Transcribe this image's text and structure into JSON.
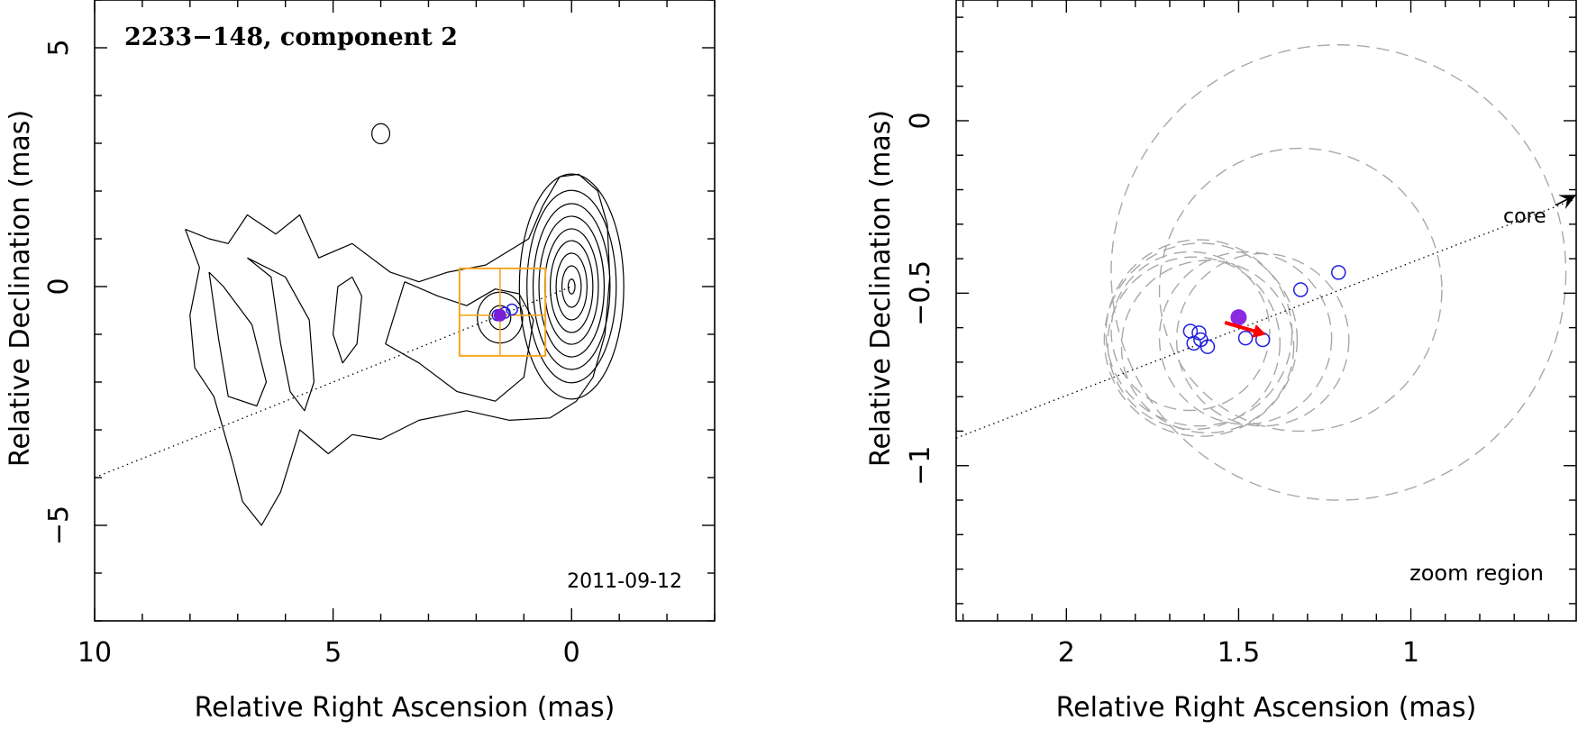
{
  "chart_data": [
    {
      "type": "contour",
      "title": "2233−148, component 2",
      "annotation": "2011-09-12",
      "xlabel": "Relative Right Ascension (mas)",
      "ylabel": "Relative Declination (mas)",
      "xlim": [
        10,
        -3
      ],
      "ylim": [
        -7,
        6
      ],
      "x_reversed": true,
      "x_ticks": [
        {
          "v": 10,
          "label": "10"
        },
        {
          "v": 5,
          "label": "5"
        },
        {
          "v": 0,
          "label": "0"
        }
      ],
      "y_ticks": [
        {
          "v": 5,
          "label": "5"
        },
        {
          "v": 0,
          "label": "0"
        },
        {
          "v": -5,
          "label": "−5"
        }
      ],
      "x_minor_step": 1,
      "y_minor_step": 1,
      "core_position": [
        0,
        0
      ],
      "jet_line": {
        "from": [
          10,
          -4.0
        ],
        "to": [
          0,
          0
        ]
      },
      "contour_centers": [
        {
          "x": 0,
          "y": 0,
          "radii": [
            0.1,
            0.28,
            0.45,
            0.62,
            0.78,
            0.95,
            1.12,
            1.3,
            1.52
          ]
        },
        {
          "x": 1.5,
          "y": -0.65,
          "radii": [
            0.18,
            0.38
          ]
        },
        {
          "x": 4.0,
          "y": 3.2,
          "radii": [
            0.15
          ]
        }
      ],
      "component": {
        "x": 1.5,
        "y": -0.6,
        "color": "#7a1fd6"
      },
      "blue_markers": [
        {
          "x": 1.25,
          "y": -0.48
        },
        {
          "x": 1.4,
          "y": -0.55
        },
        {
          "x": 1.55,
          "y": -0.6
        }
      ],
      "zoom_box": {
        "x1": 2.35,
        "x2": 0.55,
        "y1": 0.38,
        "y2": -1.45,
        "color": "#f5a623"
      }
    },
    {
      "type": "scatter",
      "annotation": "zoom region",
      "core_label": "core",
      "xlabel": "Relative Right Ascension (mas)",
      "ylabel": "Relative Declination (mas)",
      "xlim": [
        2.32,
        0.52
      ],
      "ylim": [
        -1.45,
        0.35
      ],
      "x_reversed": true,
      "x_ticks": [
        {
          "v": 2,
          "label": "2"
        },
        {
          "v": 1.5,
          "label": "1.5"
        },
        {
          "v": 1,
          "label": "1"
        }
      ],
      "y_ticks": [
        {
          "v": 0,
          "label": "0"
        },
        {
          "v": -0.5,
          "label": "−0.5"
        },
        {
          "v": -1,
          "label": "−1"
        }
      ],
      "x_minor_step": 0.1,
      "y_minor_step": 0.1,
      "jet_line": {
        "from": [
          2.32,
          -0.92
        ],
        "to": [
          0.53,
          -0.23
        ]
      },
      "core_arrow": {
        "from": [
          0.58,
          -0.245
        ],
        "to": [
          0.52,
          -0.215
        ]
      },
      "mean_position": {
        "x": 1.5,
        "y": -0.57,
        "color": "#8a2be2"
      },
      "velocity_arrow": {
        "from": [
          1.54,
          -0.585
        ],
        "to": [
          1.42,
          -0.62
        ],
        "color": "#ff0000"
      },
      "points": [
        {
          "x": 1.64,
          "y": -0.61
        },
        {
          "x": 1.63,
          "y": -0.645
        },
        {
          "x": 1.615,
          "y": -0.615
        },
        {
          "x": 1.61,
          "y": -0.635
        },
        {
          "x": 1.59,
          "y": -0.655
        },
        {
          "x": 1.48,
          "y": -0.63
        },
        {
          "x": 1.43,
          "y": -0.635
        },
        {
          "x": 1.32,
          "y": -0.49
        },
        {
          "x": 1.21,
          "y": -0.44
        }
      ],
      "point_color": "#2020e0",
      "error_circles": [
        {
          "x": 1.21,
          "y": -0.44,
          "r": 0.66
        },
        {
          "x": 1.32,
          "y": -0.49,
          "r": 0.41
        },
        {
          "x": 1.64,
          "y": -0.61,
          "r": 0.23
        },
        {
          "x": 1.63,
          "y": -0.645,
          "r": 0.25
        },
        {
          "x": 1.615,
          "y": -0.615,
          "r": 0.27
        },
        {
          "x": 1.61,
          "y": -0.635,
          "r": 0.28
        },
        {
          "x": 1.59,
          "y": -0.655,
          "r": 0.25
        },
        {
          "x": 1.48,
          "y": -0.63,
          "r": 0.25
        },
        {
          "x": 1.43,
          "y": -0.635,
          "r": 0.25
        }
      ],
      "circle_color": "#a8a8a8"
    }
  ]
}
